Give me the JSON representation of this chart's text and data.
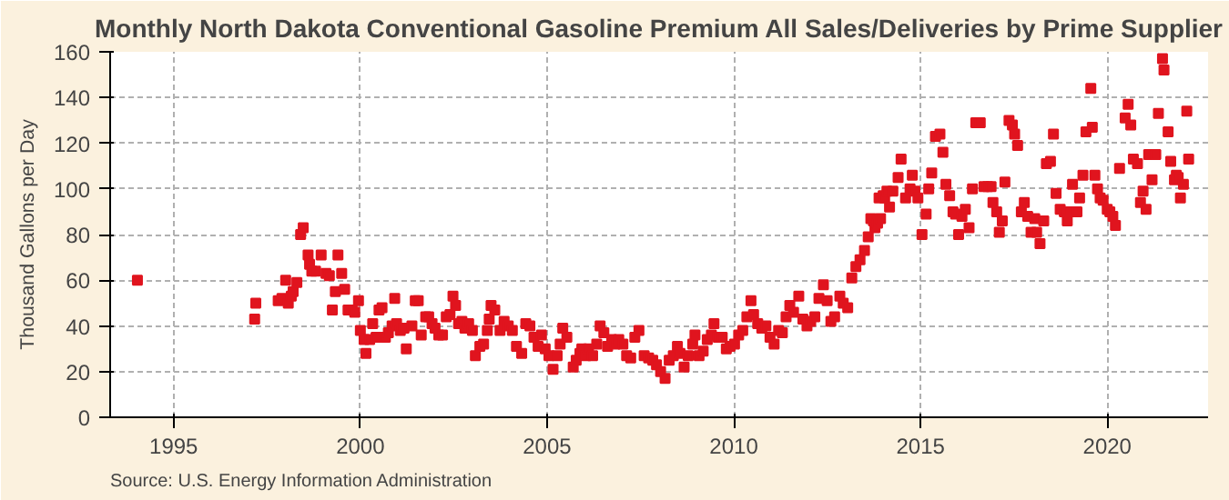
{
  "chart_data": {
    "type": "scatter",
    "title": "Monthly North Dakota Conventional Gasoline Premium All Sales/Deliveries by Prime Supplier",
    "ylabel": "Thousand Gallons per Day",
    "annotations": [
      "Source: U.S. Energy Information Administration"
    ],
    "color": "#e0141e",
    "marker": "square",
    "grid": true,
    "xlim": [
      1993.3,
      2022.7
    ],
    "xticks": [
      1995,
      2000,
      2005,
      2010,
      2015,
      2020
    ],
    "ylim": [
      0,
      160
    ],
    "yticks": [
      0,
      20,
      40,
      60,
      80,
      100,
      120,
      140,
      160
    ],
    "x": [
      1994.03,
      1997.17,
      1997.2,
      1997.8,
      1997.9,
      1998.0,
      1998.07,
      1998.15,
      1998.2,
      1998.3,
      1998.4,
      1998.47,
      1998.6,
      1998.64,
      1998.7,
      1998.8,
      1998.95,
      1999.08,
      1999.17,
      1999.25,
      1999.33,
      1999.4,
      1999.5,
      1999.58,
      1999.67,
      1999.78,
      1999.85,
      1999.95,
      2000.0,
      2000.1,
      2000.15,
      2000.25,
      2000.33,
      2000.42,
      2000.5,
      2000.58,
      2000.67,
      2000.75,
      2000.85,
      2000.92,
      2000.97,
      2001.07,
      2001.17,
      2001.23,
      2001.38,
      2001.47,
      2001.55,
      2001.63,
      2001.75,
      2001.83,
      2001.92,
      2002.0,
      2002.1,
      2002.2,
      2002.3,
      2002.4,
      2002.48,
      2002.55,
      2002.63,
      2002.72,
      2002.8,
      2002.9,
      2003.0,
      2003.08,
      2003.2,
      2003.3,
      2003.4,
      2003.45,
      2003.5,
      2003.6,
      2003.74,
      2003.85,
      2003.96,
      2004.07,
      2004.18,
      2004.32,
      2004.43,
      2004.54,
      2004.65,
      2004.76,
      2004.85,
      2004.95,
      2005.05,
      2005.16,
      2005.27,
      2005.35,
      2005.42,
      2005.53,
      2005.7,
      2005.78,
      2005.88,
      2005.93,
      2006.04,
      2006.11,
      2006.22,
      2006.33,
      2006.42,
      2006.52,
      2006.62,
      2006.73,
      2006.82,
      2006.92,
      2007.03,
      2007.13,
      2007.24,
      2007.35,
      2007.46,
      2007.6,
      2007.72,
      2007.83,
      2007.93,
      2008.04,
      2008.16,
      2008.27,
      2008.38,
      2008.49,
      2008.56,
      2008.67,
      2008.78,
      2008.9,
      2008.96,
      2009.07,
      2009.18,
      2009.29,
      2009.4,
      2009.47,
      2009.58,
      2009.69,
      2009.8,
      2009.9,
      2010.02,
      2010.13,
      2010.24,
      2010.35,
      2010.46,
      2010.53,
      2010.64,
      2010.75,
      2010.86,
      2010.97,
      2011.08,
      2011.2,
      2011.3,
      2011.4,
      2011.5,
      2011.6,
      2011.74,
      2011.85,
      2011.96,
      2012.06,
      2012.17,
      2012.28,
      2012.4,
      2012.5,
      2012.6,
      2012.7,
      2012.84,
      2012.93,
      2013.05,
      2013.16,
      2013.27,
      2013.38,
      2013.5,
      2013.6,
      2013.67,
      2013.74,
      2013.78,
      2013.85,
      2013.89,
      2013.93,
      2014.0,
      2014.04,
      2014.1,
      2014.17,
      2014.26,
      2014.4,
      2014.48,
      2014.6,
      2014.72,
      2014.78,
      2014.85,
      2014.93,
      2015.04,
      2015.15,
      2015.22,
      2015.3,
      2015.4,
      2015.52,
      2015.6,
      2015.68,
      2015.78,
      2015.87,
      2015.94,
      2016.02,
      2016.11,
      2016.2,
      2016.3,
      2016.39,
      2016.48,
      2016.6,
      2016.7,
      2016.8,
      2016.89,
      2016.94,
      2017.04,
      2017.11,
      2017.19,
      2017.26,
      2017.37,
      2017.46,
      2017.52,
      2017.6,
      2017.7,
      2017.78,
      2017.87,
      2017.96,
      2018.06,
      2018.11,
      2018.2,
      2018.3,
      2018.37,
      2018.48,
      2018.56,
      2018.63,
      2018.74,
      2018.85,
      2018.93,
      2018.98,
      2019.07,
      2019.19,
      2019.26,
      2019.35,
      2019.43,
      2019.56,
      2019.6,
      2019.67,
      2019.74,
      2019.81,
      2019.89,
      2020.0,
      2020.07,
      2020.15,
      2020.22,
      2020.33,
      2020.48,
      2020.56,
      2020.63,
      2020.7,
      2020.81,
      2020.89,
      2020.96,
      2021.04,
      2021.11,
      2021.2,
      2021.3,
      2021.37,
      2021.48,
      2021.52,
      2021.63,
      2021.7,
      2021.8,
      2021.85,
      2021.9,
      2021.96,
      2022.04,
      2022.13,
      2022.18
    ],
    "values": [
      60,
      43,
      50,
      51,
      52,
      60,
      50,
      53,
      55,
      59,
      80,
      83,
      71,
      67,
      64,
      64,
      71,
      63,
      62,
      47,
      55,
      71,
      63,
      56,
      47,
      47,
      46,
      51,
      38,
      34,
      28,
      34,
      41,
      35,
      47,
      48,
      35,
      37,
      40,
      52,
      41,
      38,
      39,
      30,
      40,
      51,
      51,
      36,
      44,
      44,
      41,
      39,
      36,
      36,
      44,
      45,
      53,
      49,
      41,
      42,
      39,
      41,
      38,
      27,
      31,
      32,
      38,
      43,
      49,
      47,
      38,
      42,
      40,
      38,
      31,
      28,
      41,
      40,
      35,
      31,
      36,
      30,
      27,
      21,
      27,
      32,
      39,
      35,
      22,
      25,
      28,
      30,
      27,
      30,
      27,
      32,
      40,
      37,
      31,
      34,
      32,
      34,
      32,
      27,
      26,
      35,
      38,
      27,
      26,
      25,
      23,
      20,
      17,
      25,
      27,
      31,
      28,
      22,
      27,
      32,
      36,
      27,
      29,
      34,
      36,
      41,
      35,
      35,
      30,
      31,
      32,
      36,
      38,
      44,
      51,
      45,
      41,
      39,
      40,
      35,
      32,
      38,
      37,
      44,
      49,
      46,
      53,
      43,
      40,
      42,
      44,
      52,
      58,
      51,
      42,
      44,
      53,
      50,
      48,
      61,
      66,
      69,
      73,
      79,
      87,
      86,
      83,
      85,
      96,
      87,
      97,
      96,
      99,
      92,
      99,
      105,
      113,
      96,
      100,
      106,
      99,
      96,
      80,
      89,
      100,
      107,
      123,
      124,
      116,
      102,
      97,
      90,
      89,
      80,
      88,
      91,
      83,
      100,
      129,
      129,
      101,
      101,
      101,
      94,
      90,
      81,
      86,
      103,
      130,
      128,
      124,
      119,
      90,
      94,
      88,
      81,
      87,
      81,
      76,
      86,
      111,
      112,
      124,
      98,
      91,
      90,
      86,
      90,
      102,
      90,
      96,
      106,
      125,
      144,
      127,
      106,
      100,
      96,
      95,
      91,
      90,
      88,
      84,
      109,
      131,
      137,
      128,
      113,
      111,
      94,
      99,
      91,
      115,
      104,
      115,
      133,
      157,
      152,
      125,
      112,
      104,
      106,
      105,
      96,
      102,
      134,
      113
    ]
  }
}
